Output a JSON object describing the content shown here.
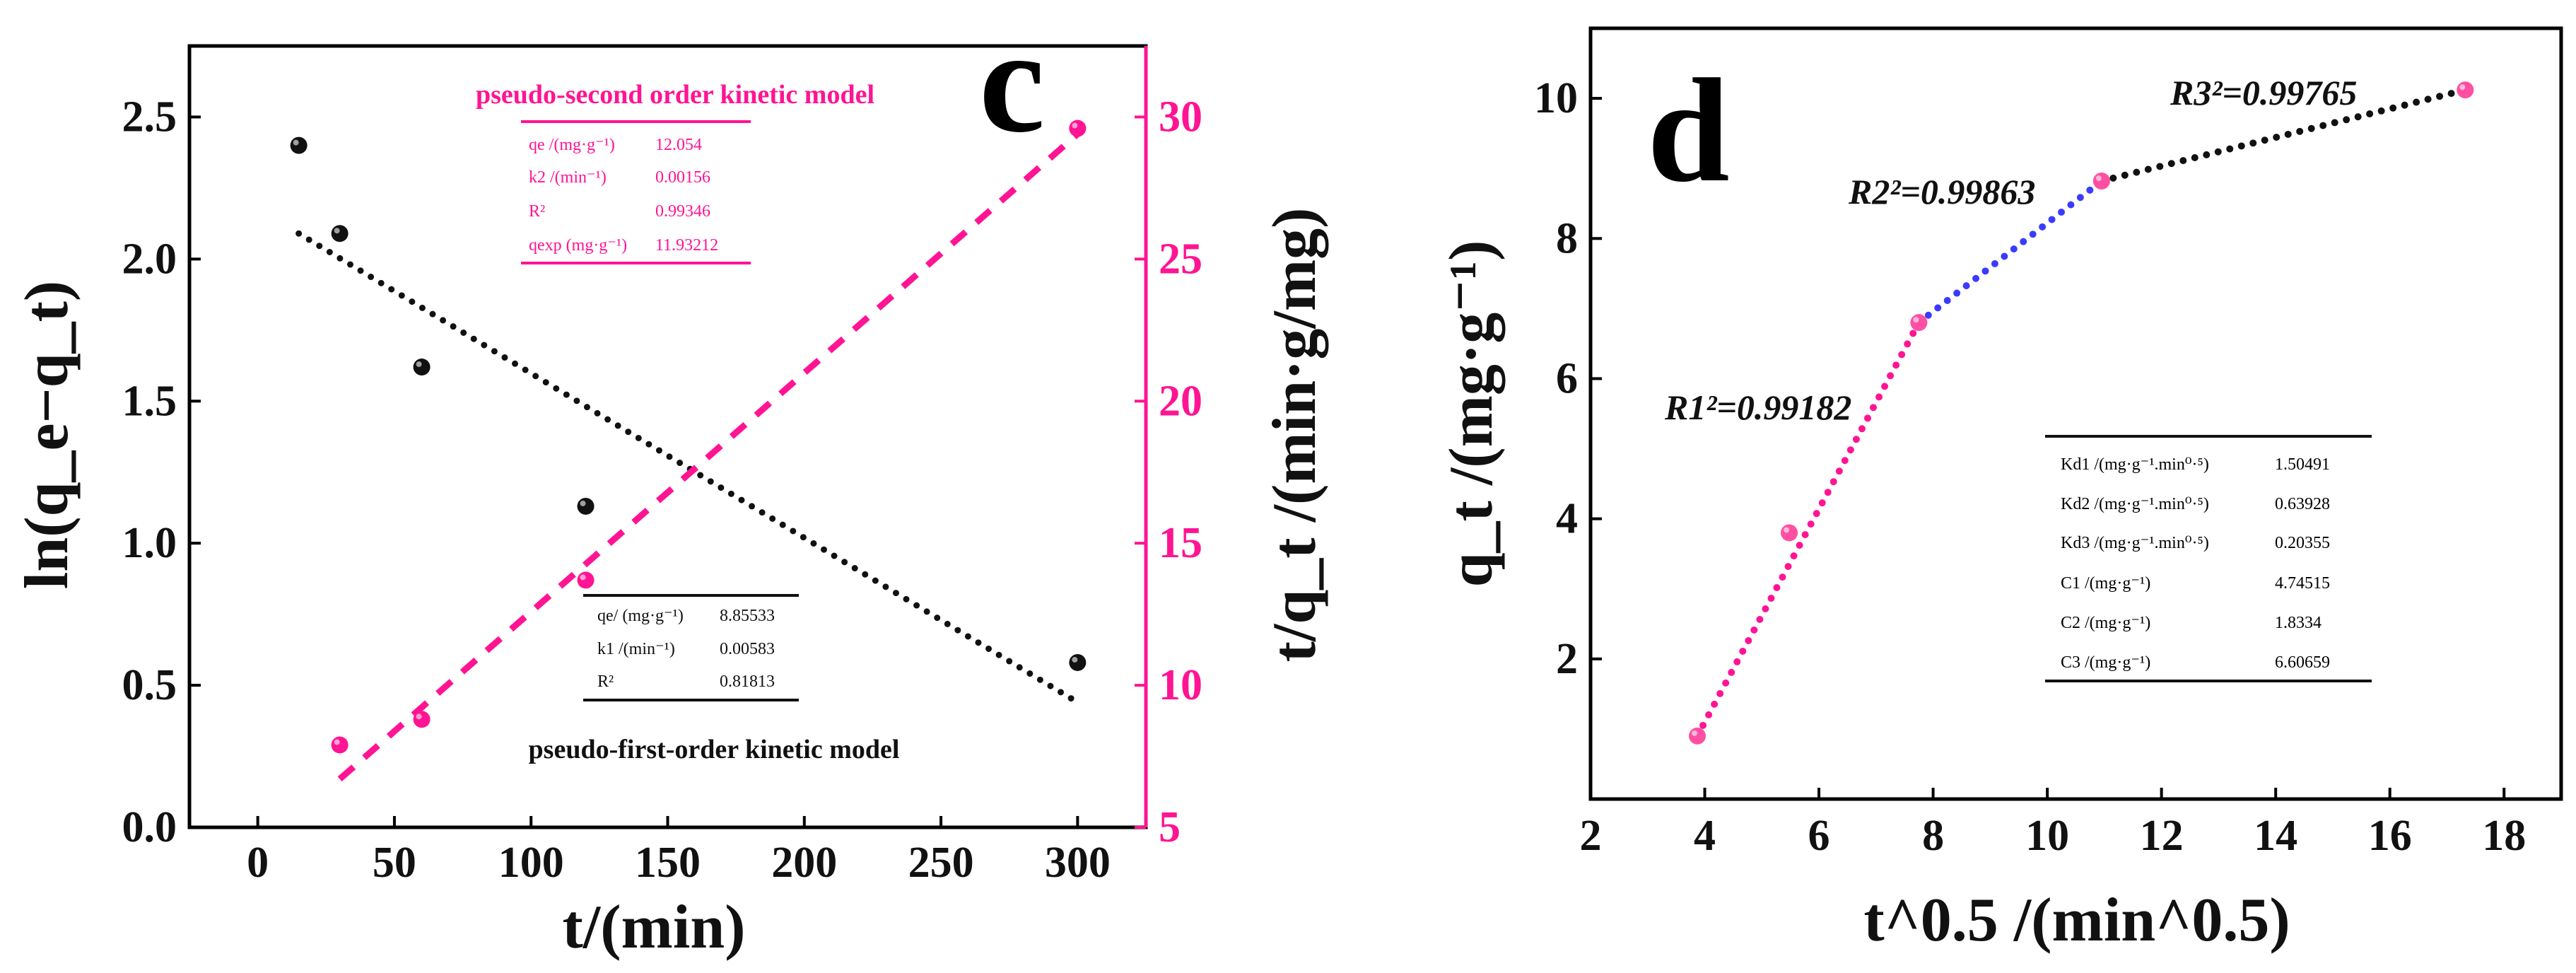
{
  "chart_data": [
    {
      "type": "scatter",
      "panel_label": "c",
      "xlabel": "t/(min)",
      "ylabel_left": "ln(q_e−q_t)",
      "ylabel_right": "t/q_t /(min·g/mg)",
      "xlim": [
        -25,
        325
      ],
      "ylim_left": [
        0,
        2.75
      ],
      "ylim_right": [
        5,
        32.5
      ],
      "xticks": [
        0,
        50,
        100,
        150,
        200,
        250,
        300
      ],
      "yticks_left": [
        "0.0",
        "0.5",
        "1.0",
        "1.5",
        "2.0",
        "2.5"
      ],
      "yticks_right": [
        "5",
        "10",
        "15",
        "20",
        "25",
        "30"
      ],
      "series": [
        {
          "axis": "left",
          "color": "#111111",
          "x": [
            15,
            30,
            60,
            120,
            300
          ],
          "y": [
            2.4,
            2.09,
            1.62,
            1.13,
            0.58
          ],
          "fit": [
            [
              15,
              2.09
            ],
            [
              300,
              0.44
            ]
          ]
        },
        {
          "axis": "right",
          "color": "#ff1493",
          "x": [
            30,
            60,
            120,
            300
          ],
          "y": [
            7.9,
            8.8,
            13.7,
            29.6
          ],
          "fit": [
            [
              30,
              6.7
            ],
            [
              300,
              29.4
            ]
          ]
        }
      ],
      "tables": [
        {
          "title": "pseudo-second order kinetic model",
          "color": "#ff1493",
          "rows": [
            {
              "param": "qe /(mg·g⁻¹)",
              "value": "12.054"
            },
            {
              "param": "k2 /(min⁻¹)",
              "value": "0.00156"
            },
            {
              "param": "R²",
              "value": "0.99346"
            },
            {
              "param": "qexp (mg·g⁻¹)",
              "value": "11.93212"
            }
          ]
        },
        {
          "title": "pseudo-first-order kinetic model",
          "color": "#111111",
          "rows": [
            {
              "param": "qe/ (mg·g⁻¹)",
              "value": "8.85533"
            },
            {
              "param": "k1 /(min⁻¹)",
              "value": "0.00583"
            },
            {
              "param": "R²",
              "value": "0.81813"
            }
          ]
        }
      ]
    },
    {
      "type": "scatter",
      "panel_label": "d",
      "xlabel": "t^0.5 /(min^0.5)",
      "ylabel": "q_t /(mg·g⁻¹)",
      "xlim": [
        2,
        19
      ],
      "ylim": [
        0,
        11
      ],
      "xticks": [
        2,
        4,
        6,
        8,
        10,
        12,
        14,
        16,
        18
      ],
      "yticks": [
        2,
        4,
        6,
        8,
        10
      ],
      "points": {
        "color": "#ff4fa3",
        "x": [
          3.87,
          5.48,
          7.75,
          10.95,
          17.32
        ],
        "y": [
          0.9,
          3.8,
          6.8,
          8.82,
          10.12
        ]
      },
      "segments": [
        {
          "color": "#ff1493",
          "from": [
            3.87,
            0.9
          ],
          "to": [
            7.75,
            6.8
          ],
          "label": "R1²=0.99182"
        },
        {
          "color": "#3b3bff",
          "from": [
            7.75,
            6.8
          ],
          "to": [
            10.95,
            8.82
          ],
          "label": "R2²=0.99863"
        },
        {
          "color": "#111111",
          "from": [
            10.95,
            8.82
          ],
          "to": [
            17.32,
            10.12
          ],
          "label": "R3²=0.99765"
        }
      ],
      "table": {
        "rows": [
          {
            "param": "Kd1 /(mg·g⁻¹.min⁰·⁵)",
            "value": "1.50491"
          },
          {
            "param": "Kd2 /(mg·g⁻¹.min⁰·⁵)",
            "value": "0.63928"
          },
          {
            "param": "Kd3 /(mg·g⁻¹.min⁰·⁵)",
            "value": "0.20355"
          },
          {
            "param": "C1 /(mg·g⁻¹)",
            "value": "4.74515"
          },
          {
            "param": "C2 /(mg·g⁻¹)",
            "value": "1.8334"
          },
          {
            "param": "C3 /(mg·g⁻¹)",
            "value": "6.60659"
          }
        ]
      }
    }
  ]
}
